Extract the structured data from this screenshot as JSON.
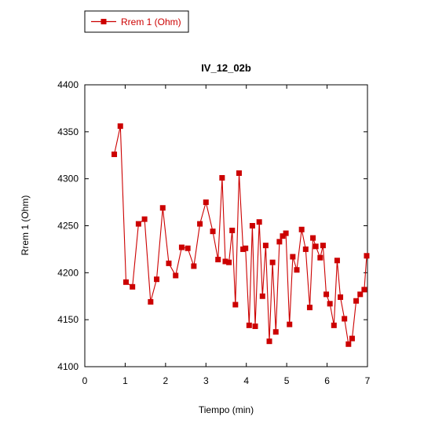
{
  "chart_data": {
    "type": "line",
    "title": "IV_12_02b",
    "xlabel": "Tiempo (min)",
    "ylabel": "Rrem 1 (Ohm)",
    "xlim": [
      0,
      7
    ],
    "ylim": [
      4100,
      4400
    ],
    "xticks": [
      "0",
      "1",
      "2",
      "3",
      "4",
      "5",
      "6",
      "7"
    ],
    "yticks": [
      "4100",
      "4150",
      "4200",
      "4250",
      "4300",
      "4350",
      "4400"
    ],
    "grid": false,
    "legend_position": "top-left",
    "series": [
      {
        "name": "Rrem 1 (Ohm)",
        "color": "#cc0000",
        "marker": "square",
        "x": [
          0.73,
          0.88,
          1.02,
          1.18,
          1.33,
          1.48,
          1.63,
          1.78,
          1.93,
          2.08,
          2.25,
          2.4,
          2.55,
          2.7,
          2.85,
          3.0,
          3.17,
          3.3,
          3.4,
          3.48,
          3.57,
          3.65,
          3.73,
          3.82,
          3.92,
          3.98,
          4.07,
          4.15,
          4.22,
          4.32,
          4.4,
          4.48,
          4.57,
          4.65,
          4.73,
          4.82,
          4.9,
          4.98,
          5.07,
          5.15,
          5.25,
          5.37,
          5.47,
          5.57,
          5.65,
          5.72,
          5.83,
          5.9,
          5.98,
          6.07,
          6.17,
          6.25,
          6.33,
          6.43,
          6.53,
          6.62,
          6.72,
          6.82,
          6.92,
          6.98
        ],
        "y": [
          4326,
          4356,
          4190,
          4185,
          4252,
          4257,
          4169,
          4193,
          4269,
          4210,
          4197,
          4227,
          4226,
          4207,
          4252,
          4275,
          4244,
          4214,
          4301,
          4212,
          4211,
          4245,
          4166,
          4306,
          4225,
          4226,
          4144,
          4250,
          4143,
          4254,
          4175,
          4229,
          4127,
          4211,
          4137,
          4233,
          4239,
          4242,
          4145,
          4217,
          4203,
          4246,
          4225,
          4163,
          4237,
          4228,
          4216,
          4229,
          4177,
          4167,
          4144,
          4213,
          4174,
          4151,
          4124,
          4130,
          4170,
          4177,
          4182,
          4218
        ]
      }
    ]
  }
}
